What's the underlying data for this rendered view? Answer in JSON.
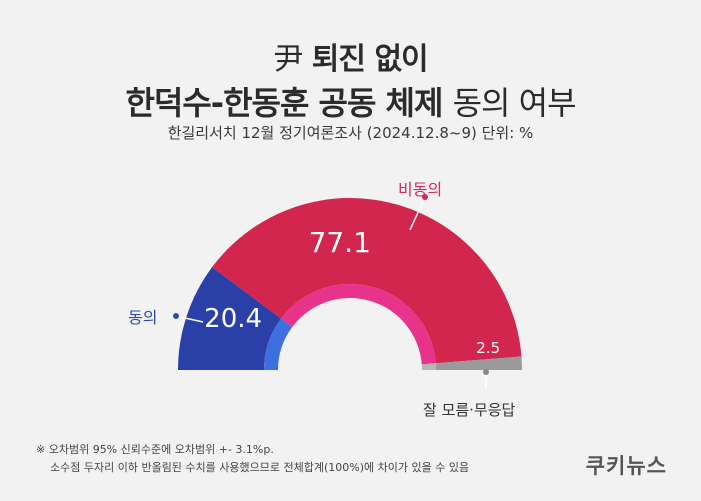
{
  "title_line1_prefix": "尹",
  "title_line1_main": "퇴진 없이",
  "title_line2_bold": "한덕수-한동훈 공동 체제",
  "title_line2_light": "동의 여부",
  "subtitle": "한길리서치 12월 정기여론조사 (2024.12.8~9) 단위: %",
  "chart_data": {
    "type": "pie",
    "subtype": "semicircle-donut",
    "categories": [
      "동의",
      "비동의",
      "잘 모름·무응답"
    ],
    "values": [
      20.4,
      77.1,
      2.5
    ],
    "value_labels": [
      "20.4",
      "77.1",
      "2.5"
    ],
    "unit": "%",
    "colors": [
      "#2a40a8",
      "#d2264f",
      "#9a9a9a"
    ],
    "inner_colors": [
      "#3e6fe0",
      "#e8338a",
      "#b5b5b5"
    ]
  },
  "notes": [
    "※ 오차범위 95% 신뢰수준에 오차범위 +- 3.1%p.",
    "소수점 두자리 이하 반올림된 수치를 사용했으므로 전체합계(100%)에 차이가 있을 수 있음"
  ],
  "brand": "쿠키뉴스"
}
